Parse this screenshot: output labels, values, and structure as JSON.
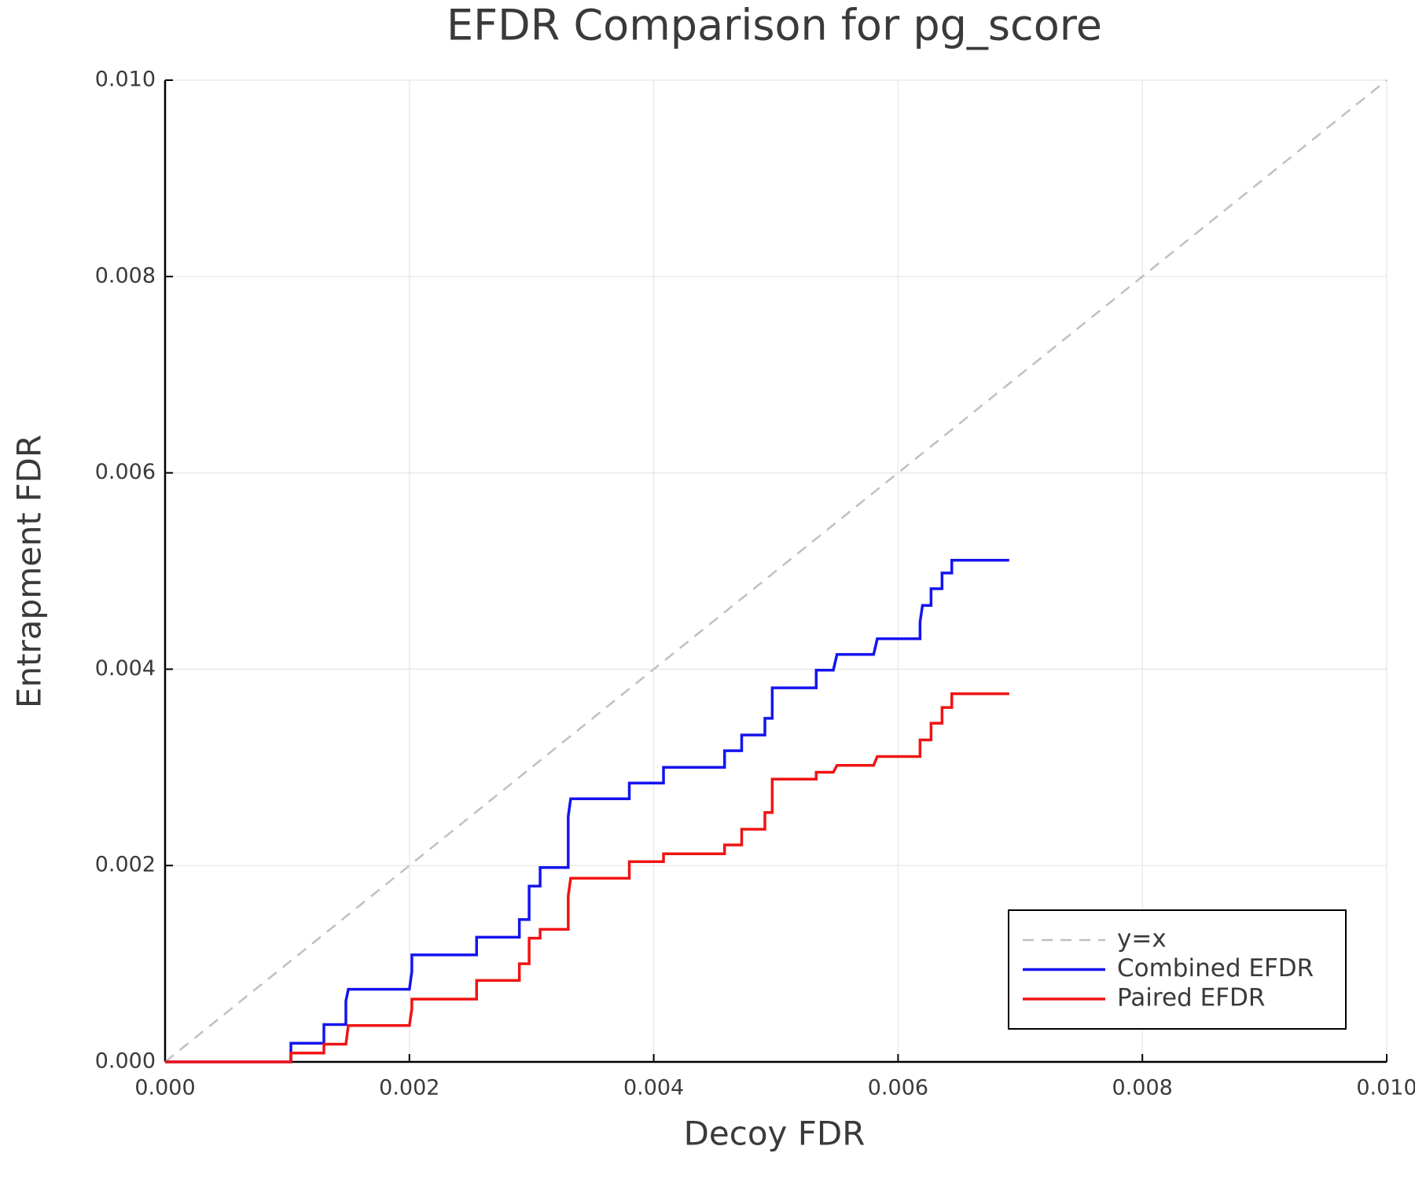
{
  "chart_data": {
    "type": "line",
    "title": "EFDR Comparison for pg_score",
    "x_label": "Decoy FDR",
    "y_label": "Entrapment FDR",
    "xlim": [
      0,
      0.01
    ],
    "ylim": [
      0,
      0.01
    ],
    "xticks": [
      {
        "value": 0,
        "label": "0.000"
      },
      {
        "value": 0.002,
        "label": "0.002"
      },
      {
        "value": 0.004,
        "label": "0.004"
      },
      {
        "value": 0.006,
        "label": "0.006"
      },
      {
        "value": 0.008,
        "label": "0.008"
      },
      {
        "value": 0.01,
        "label": "0.010"
      }
    ],
    "yticks": [
      {
        "value": 0,
        "label": "0.000"
      },
      {
        "value": 0.002,
        "label": "0.002"
      },
      {
        "value": 0.004,
        "label": "0.004"
      },
      {
        "value": 0.006,
        "label": "0.006"
      },
      {
        "value": 0.008,
        "label": "0.008"
      },
      {
        "value": 0.01,
        "label": "0.010"
      }
    ],
    "grid": true,
    "legend_position": "bottom right",
    "series": [
      {
        "name": "y=x",
        "color": "#c0c0c0",
        "dashed": true,
        "x": [
          0,
          0.01
        ],
        "values": [
          0,
          0.01
        ]
      },
      {
        "name": "Combined EFDR",
        "color": "#1414f0",
        "dashed": false,
        "x": [
          0,
          0.00103,
          0.00103,
          0.0013,
          0.0013,
          0.00148,
          0.00148,
          0.0015,
          0.002,
          0.00202,
          0.00202,
          0.00255,
          0.00255,
          0.0029,
          0.0029,
          0.00298,
          0.00298,
          0.00298,
          0.00307,
          0.00307,
          0.0033,
          0.0033,
          0.00332,
          0.0038,
          0.0038,
          0.00408,
          0.00408,
          0.00458,
          0.00458,
          0.00472,
          0.00472,
          0.00491,
          0.00491,
          0.00497,
          0.00497,
          0.00533,
          0.00533,
          0.00547,
          0.0055,
          0.0058,
          0.00583,
          0.00618,
          0.00618,
          0.0062,
          0.00627,
          0.00627,
          0.00636,
          0.00636,
          0.00644,
          0.00644,
          0.00691
        ],
        "values": [
          0,
          0,
          0.00019,
          0.00019,
          0.00038,
          0.00038,
          0.00062,
          0.00074,
          0.00074,
          0.00092,
          0.00109,
          0.00109,
          0.00127,
          0.00127,
          0.00145,
          0.00145,
          0.00163,
          0.00179,
          0.00179,
          0.00198,
          0.00198,
          0.0025,
          0.00268,
          0.00268,
          0.00284,
          0.00284,
          0.003,
          0.003,
          0.00317,
          0.00317,
          0.00333,
          0.00333,
          0.0035,
          0.0035,
          0.00381,
          0.00381,
          0.00399,
          0.00399,
          0.00415,
          0.00415,
          0.00431,
          0.00431,
          0.00448,
          0.00465,
          0.00465,
          0.00482,
          0.00482,
          0.00498,
          0.00498,
          0.00511,
          0.00511
        ]
      },
      {
        "name": "Paired EFDR",
        "color": "#f01414",
        "dashed": false,
        "x": [
          0,
          0.00103,
          0.00103,
          0.0013,
          0.0013,
          0.00148,
          0.0015,
          0.002,
          0.00202,
          0.00202,
          0.00255,
          0.00255,
          0.0029,
          0.0029,
          0.00298,
          0.00298,
          0.00307,
          0.00307,
          0.0033,
          0.0033,
          0.00332,
          0.0038,
          0.0038,
          0.00408,
          0.00408,
          0.00458,
          0.00458,
          0.00472,
          0.00472,
          0.00491,
          0.00491,
          0.00497,
          0.00497,
          0.00533,
          0.00533,
          0.00547,
          0.0055,
          0.0058,
          0.00583,
          0.00618,
          0.00618,
          0.00627,
          0.00627,
          0.00636,
          0.00636,
          0.00644,
          0.00644,
          0.00691
        ],
        "values": [
          0,
          0,
          9e-05,
          9e-05,
          0.00018,
          0.00018,
          0.00037,
          0.00037,
          0.00054,
          0.00064,
          0.00064,
          0.00083,
          0.00083,
          0.001,
          0.001,
          0.00126,
          0.00126,
          0.00135,
          0.00135,
          0.00169,
          0.00187,
          0.00187,
          0.00204,
          0.00204,
          0.00212,
          0.00212,
          0.00221,
          0.00221,
          0.00237,
          0.00237,
          0.00254,
          0.00254,
          0.00288,
          0.00288,
          0.00295,
          0.00295,
          0.00302,
          0.00302,
          0.00311,
          0.00311,
          0.00328,
          0.00328,
          0.00345,
          0.00345,
          0.00361,
          0.00361,
          0.00375,
          0.00375
        ]
      }
    ]
  }
}
